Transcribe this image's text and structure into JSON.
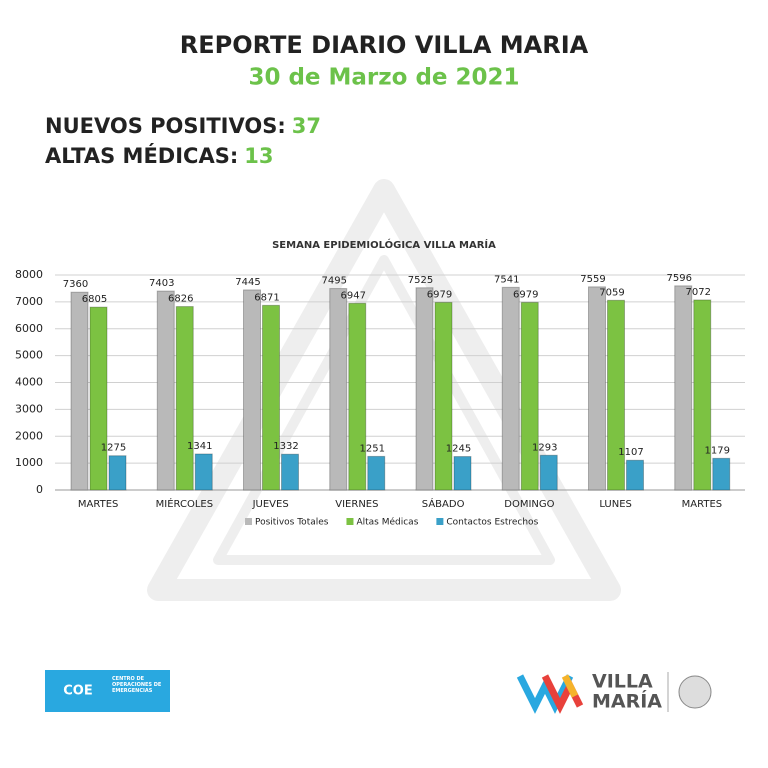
{
  "header": {
    "title": "REPORTE DIARIO VILLA MARIA",
    "date": "30 de Marzo de 2021"
  },
  "stats": [
    {
      "label": "NUEVOS POSITIVOS:",
      "value": 37
    },
    {
      "label": "ALTAS MÉDICAS:",
      "value": 13
    }
  ],
  "chart_data": {
    "type": "bar",
    "title": "SEMANA EPIDEMIOLÓGICA VILLA MARÍA",
    "categories": [
      "MARTES",
      "MIÉRCOLES",
      "JUEVES",
      "VIERNES",
      "SÁBADO",
      "DOMINGO",
      "LUNES",
      "MARTES"
    ],
    "series": [
      {
        "name": "Positivos Totales",
        "color": "#b9b9b9",
        "values": [
          7360,
          7403,
          7445,
          7495,
          7525,
          7541,
          7559,
          7596
        ]
      },
      {
        "name": "Altas Médicas",
        "color": "#7cc242",
        "values": [
          6805,
          6826,
          6871,
          6947,
          6979,
          6979,
          7059,
          7072
        ]
      },
      {
        "name": "Contactos Estrechos",
        "color": "#3aa0c8",
        "values": [
          1275,
          1341,
          1332,
          1251,
          1245,
          1293,
          1107,
          1179
        ]
      }
    ],
    "ylim": [
      0,
      8000
    ],
    "yticks": [
      0,
      1000,
      2000,
      3000,
      4000,
      5000,
      6000,
      7000,
      8000
    ],
    "grid": true,
    "legend": "bottom"
  },
  "footer": {
    "coe": "COE",
    "coe_name": "CENTRO DE OPERACIONES DE EMERGENCIAS",
    "brand_1": "VILLA",
    "brand_2": "MARÍA"
  }
}
